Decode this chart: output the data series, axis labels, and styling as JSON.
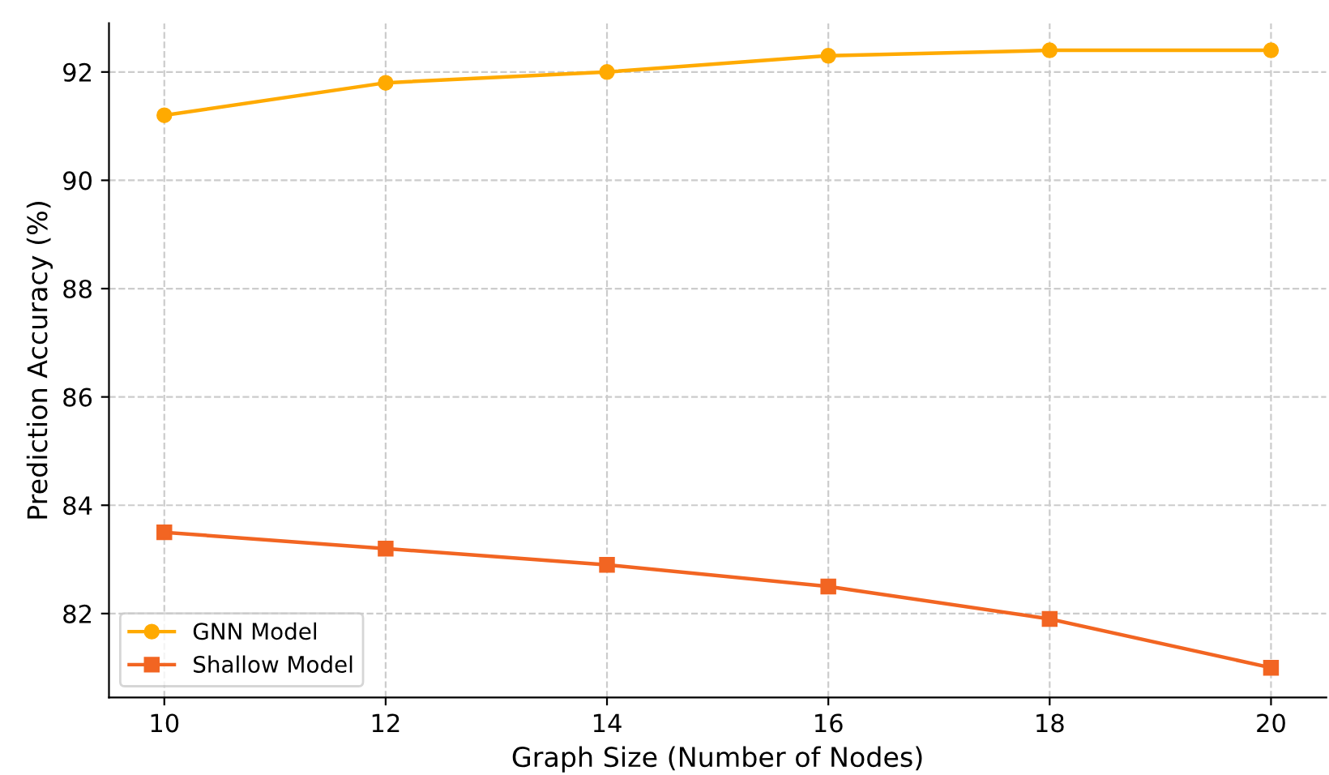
{
  "chart_data": {
    "type": "line",
    "xlabel": "Graph Size (Number of Nodes)",
    "ylabel": "Prediction Accuracy (%)",
    "x": [
      10,
      12,
      14,
      16,
      18,
      20
    ],
    "series": [
      {
        "name": "GNN Model",
        "color": "#ffaa00",
        "marker": "circle",
        "values": [
          91.2,
          91.8,
          92.0,
          92.3,
          92.4,
          92.4
        ]
      },
      {
        "name": "Shallow Model",
        "color": "#f26522",
        "marker": "square",
        "values": [
          83.5,
          83.2,
          82.9,
          82.5,
          81.9,
          81.0
        ]
      }
    ],
    "xlim": [
      9.5,
      20.5
    ],
    "xticks": [
      10,
      12,
      14,
      16,
      18,
      20
    ],
    "ylim": [
      80.45,
      92.9
    ],
    "yticks": [
      82,
      84,
      86,
      88,
      90,
      92
    ],
    "grid": true,
    "legend": "bottom left",
    "line_style": "solid"
  }
}
